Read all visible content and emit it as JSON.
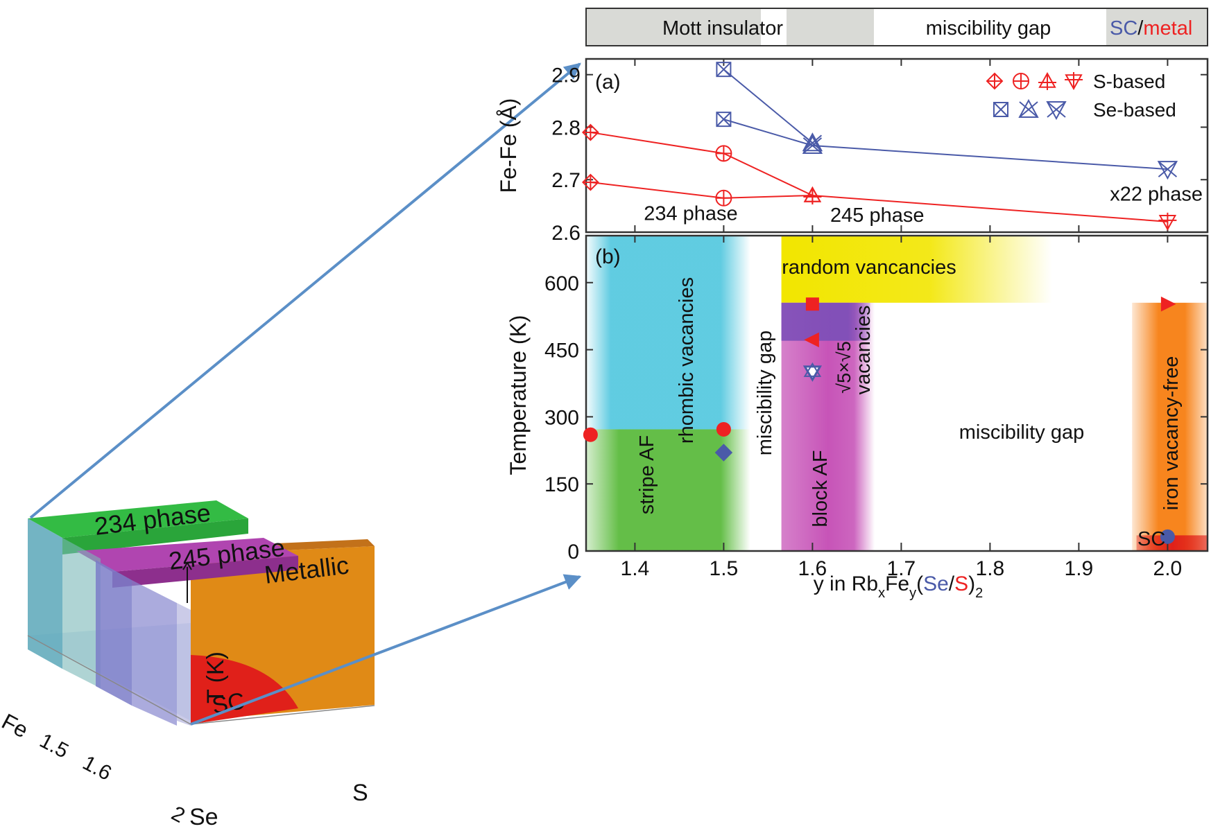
{
  "colors": {
    "s_red": "#ee2222",
    "se_blue": "#4a5aa8",
    "panel_bar_gray": "#d9dad6",
    "phase_234_green": "#33bb44",
    "phase_245_magenta": "#a53aa5",
    "metallic_orange": "#e08a16",
    "sc_red": "#e0201a",
    "arrow_blue": "#5b8fc7",
    "cyan_region": "#4fc6de",
    "green_region": "#5cbb3e",
    "yellow_region": "#f2e600",
    "purple_region": "#7e4fb8",
    "pink_region": "#c44bb4",
    "orange_region": "#f7851e"
  },
  "left_diagram": {
    "label_234": "234 phase",
    "label_245": "245 phase",
    "label_metallic": "Metallic",
    "label_T": "T (K)",
    "label_SC": "SC",
    "axis_fe": "Fe",
    "tick_15": "1.5",
    "tick_16": "1.6",
    "tick_2": "2",
    "axis_se": "Se",
    "axis_s": "S"
  },
  "top_bar": {
    "mott": "Mott insulator",
    "gap": "miscibility gap",
    "sc": "SC",
    "slash": "/",
    "metal": "metal"
  },
  "chart_data": [
    {
      "type": "line",
      "panel_label": "(a)",
      "ylabel": "Fe-Fe (Å)",
      "xlim": [
        1.345,
        2.045
      ],
      "ylim": [
        2.6,
        2.93
      ],
      "x_ticks": [
        1.4,
        1.5,
        1.6,
        1.7,
        1.8,
        1.9,
        2.0
      ],
      "y_ticks": [
        2.6,
        2.7,
        2.8,
        2.9
      ],
      "y_tick_labels": [
        "2.6",
        "2.7",
        "2.8",
        "2.9"
      ],
      "legend": {
        "s_label": "S-based",
        "se_label": "Se-based",
        "placement": "top-right"
      },
      "series": [
        {
          "group": "S",
          "points": [
            {
              "x": 1.35,
              "y": 2.79,
              "m": "diamond"
            },
            {
              "x": 1.5,
              "y": 2.75,
              "m": "circle"
            },
            {
              "x": 1.6,
              "y": 2.67,
              "m": "triangle-up"
            }
          ]
        },
        {
          "group": "S",
          "points": [
            {
              "x": 1.35,
              "y": 2.695,
              "m": "diamond"
            },
            {
              "x": 1.5,
              "y": 2.665,
              "m": "circle"
            },
            {
              "x": 1.6,
              "y": 2.67,
              "m": "triangle-up"
            },
            {
              "x": 2.0,
              "y": 2.62,
              "m": "triangle-down"
            }
          ]
        },
        {
          "group": "Se",
          "points": [
            {
              "x": 1.5,
              "y": 2.91,
              "m": "square-x"
            },
            {
              "x": 1.6,
              "y": 2.77,
              "m": "triangle-up-x"
            }
          ]
        },
        {
          "group": "Se",
          "points": [
            {
              "x": 1.5,
              "y": 2.815,
              "m": "square-x"
            },
            {
              "x": 1.6,
              "y": 2.765,
              "m": "triangle-up-x"
            },
            {
              "x": 2.0,
              "y": 2.72,
              "m": "triangle-down-x"
            }
          ]
        }
      ],
      "annotations": [
        {
          "text": "234 phase",
          "x": 1.41,
          "y": 2.623
        },
        {
          "text": "245 phase",
          "x": 1.62,
          "y": 2.62
        },
        {
          "text": "x22 phase",
          "x": 1.935,
          "y": 2.66
        }
      ]
    },
    {
      "type": "scatter",
      "panel_label": "(b)",
      "ylabel": "Temperature (K)",
      "xlabel_parts": [
        "y in Rb",
        "x",
        "Fe",
        "y",
        "(",
        "Se",
        "/",
        "S",
        ")",
        "2"
      ],
      "xlim": [
        1.345,
        2.045
      ],
      "ylim": [
        0,
        705
      ],
      "x_ticks": [
        1.4,
        1.5,
        1.6,
        1.7,
        1.8,
        1.9,
        2.0
      ],
      "x_tick_labels": [
        "1.4",
        "1.5",
        "1.6",
        "1.7",
        "1.8",
        "1.9",
        "2.0"
      ],
      "y_ticks": [
        0,
        150,
        300,
        450,
        600
      ],
      "y_tick_labels": [
        "0",
        "150",
        "300",
        "450",
        "600"
      ],
      "regions": [
        {
          "name": "rhombic vacancies",
          "x": [
            1.345,
            1.53
          ],
          "y": [
            272,
            705
          ]
        },
        {
          "name": "stripe AF",
          "x": [
            1.345,
            1.53
          ],
          "y": [
            0,
            272
          ]
        },
        {
          "name": "random vancancies",
          "x": [
            1.565,
            1.87
          ],
          "y": [
            555,
            705
          ]
        },
        {
          "name": "block AF upper",
          "x": [
            1.565,
            1.665
          ],
          "y": [
            470,
            555
          ]
        },
        {
          "name": "block AF",
          "x": [
            1.565,
            1.67
          ],
          "y": [
            0,
            555
          ]
        },
        {
          "name": "iron vacancy-free",
          "x": [
            1.96,
            2.045
          ],
          "y": [
            0,
            555
          ]
        },
        {
          "name": "SC",
          "x": [
            1.965,
            2.045
          ],
          "y": [
            0,
            35
          ]
        }
      ],
      "points": [
        {
          "x": 1.35,
          "y": 260,
          "m": "circle",
          "group": "S"
        },
        {
          "x": 1.5,
          "y": 272,
          "m": "circle",
          "group": "S"
        },
        {
          "x": 1.5,
          "y": 220,
          "m": "diamond",
          "group": "Se"
        },
        {
          "x": 1.6,
          "y": 552,
          "m": "square",
          "group": "S"
        },
        {
          "x": 1.6,
          "y": 472,
          "m": "triangle-left",
          "group": "S"
        },
        {
          "x": 1.6,
          "y": 400,
          "m": "star-hollow",
          "group": "Se"
        },
        {
          "x": 2.0,
          "y": 552,
          "m": "triangle-right",
          "group": "S"
        },
        {
          "x": 2.0,
          "y": 32,
          "m": "circle",
          "group": "Se"
        }
      ],
      "labels": {
        "rhombic": "rhombic vacancies",
        "stripe": "stripe AF",
        "misc1": "miscibility gap",
        "random": "random vancancies",
        "block": "block AF",
        "sqrt5": "√5×√5",
        "vac": "vacancies",
        "misc2": "miscibility gap",
        "iron": "iron vacancy-free",
        "sc": "SC"
      }
    }
  ]
}
